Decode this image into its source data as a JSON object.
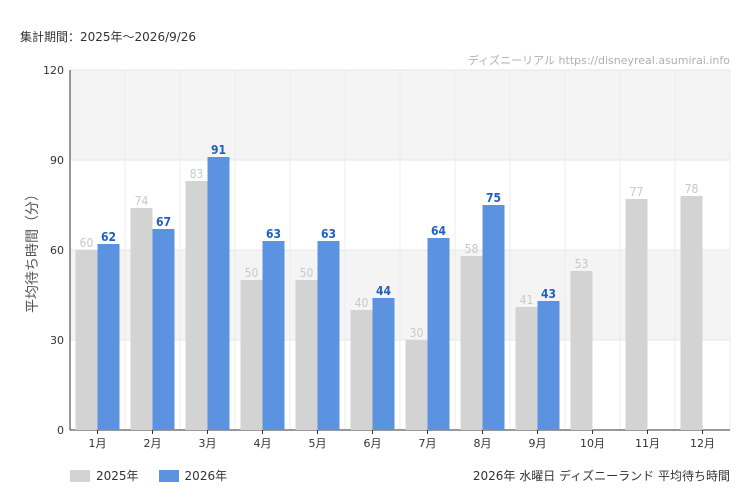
{
  "header": {
    "period": "集計期間：2025年～2026/9/26",
    "credit": "ディズニーリアル https://disneyreal.asumirai.info"
  },
  "chart_data": {
    "type": "bar",
    "title": "2026年 水曜日 ディズニーランド 平均待ち時間",
    "ylabel": "平均待ち時間（分）",
    "xlabel": "",
    "ylim": [
      0,
      120
    ],
    "yticks": [
      0,
      30,
      60,
      90,
      120
    ],
    "grid": true,
    "legend_position": "bottom-left",
    "categories": [
      "1月",
      "2月",
      "3月",
      "4月",
      "5月",
      "6月",
      "7月",
      "8月",
      "9月",
      "10月",
      "11月",
      "12月"
    ],
    "series": [
      {
        "name": "2025年",
        "color": "#d3d3d3",
        "label_color": "#c8c8c8",
        "values": [
          60,
          74,
          83,
          50,
          50,
          40,
          30,
          58,
          41,
          53,
          77,
          78
        ]
      },
      {
        "name": "2026年",
        "color": "#5b93e1",
        "label_color": "#2060c0",
        "values": [
          62,
          67,
          91,
          63,
          63,
          44,
          64,
          75,
          43,
          null,
          null,
          null
        ]
      }
    ]
  }
}
